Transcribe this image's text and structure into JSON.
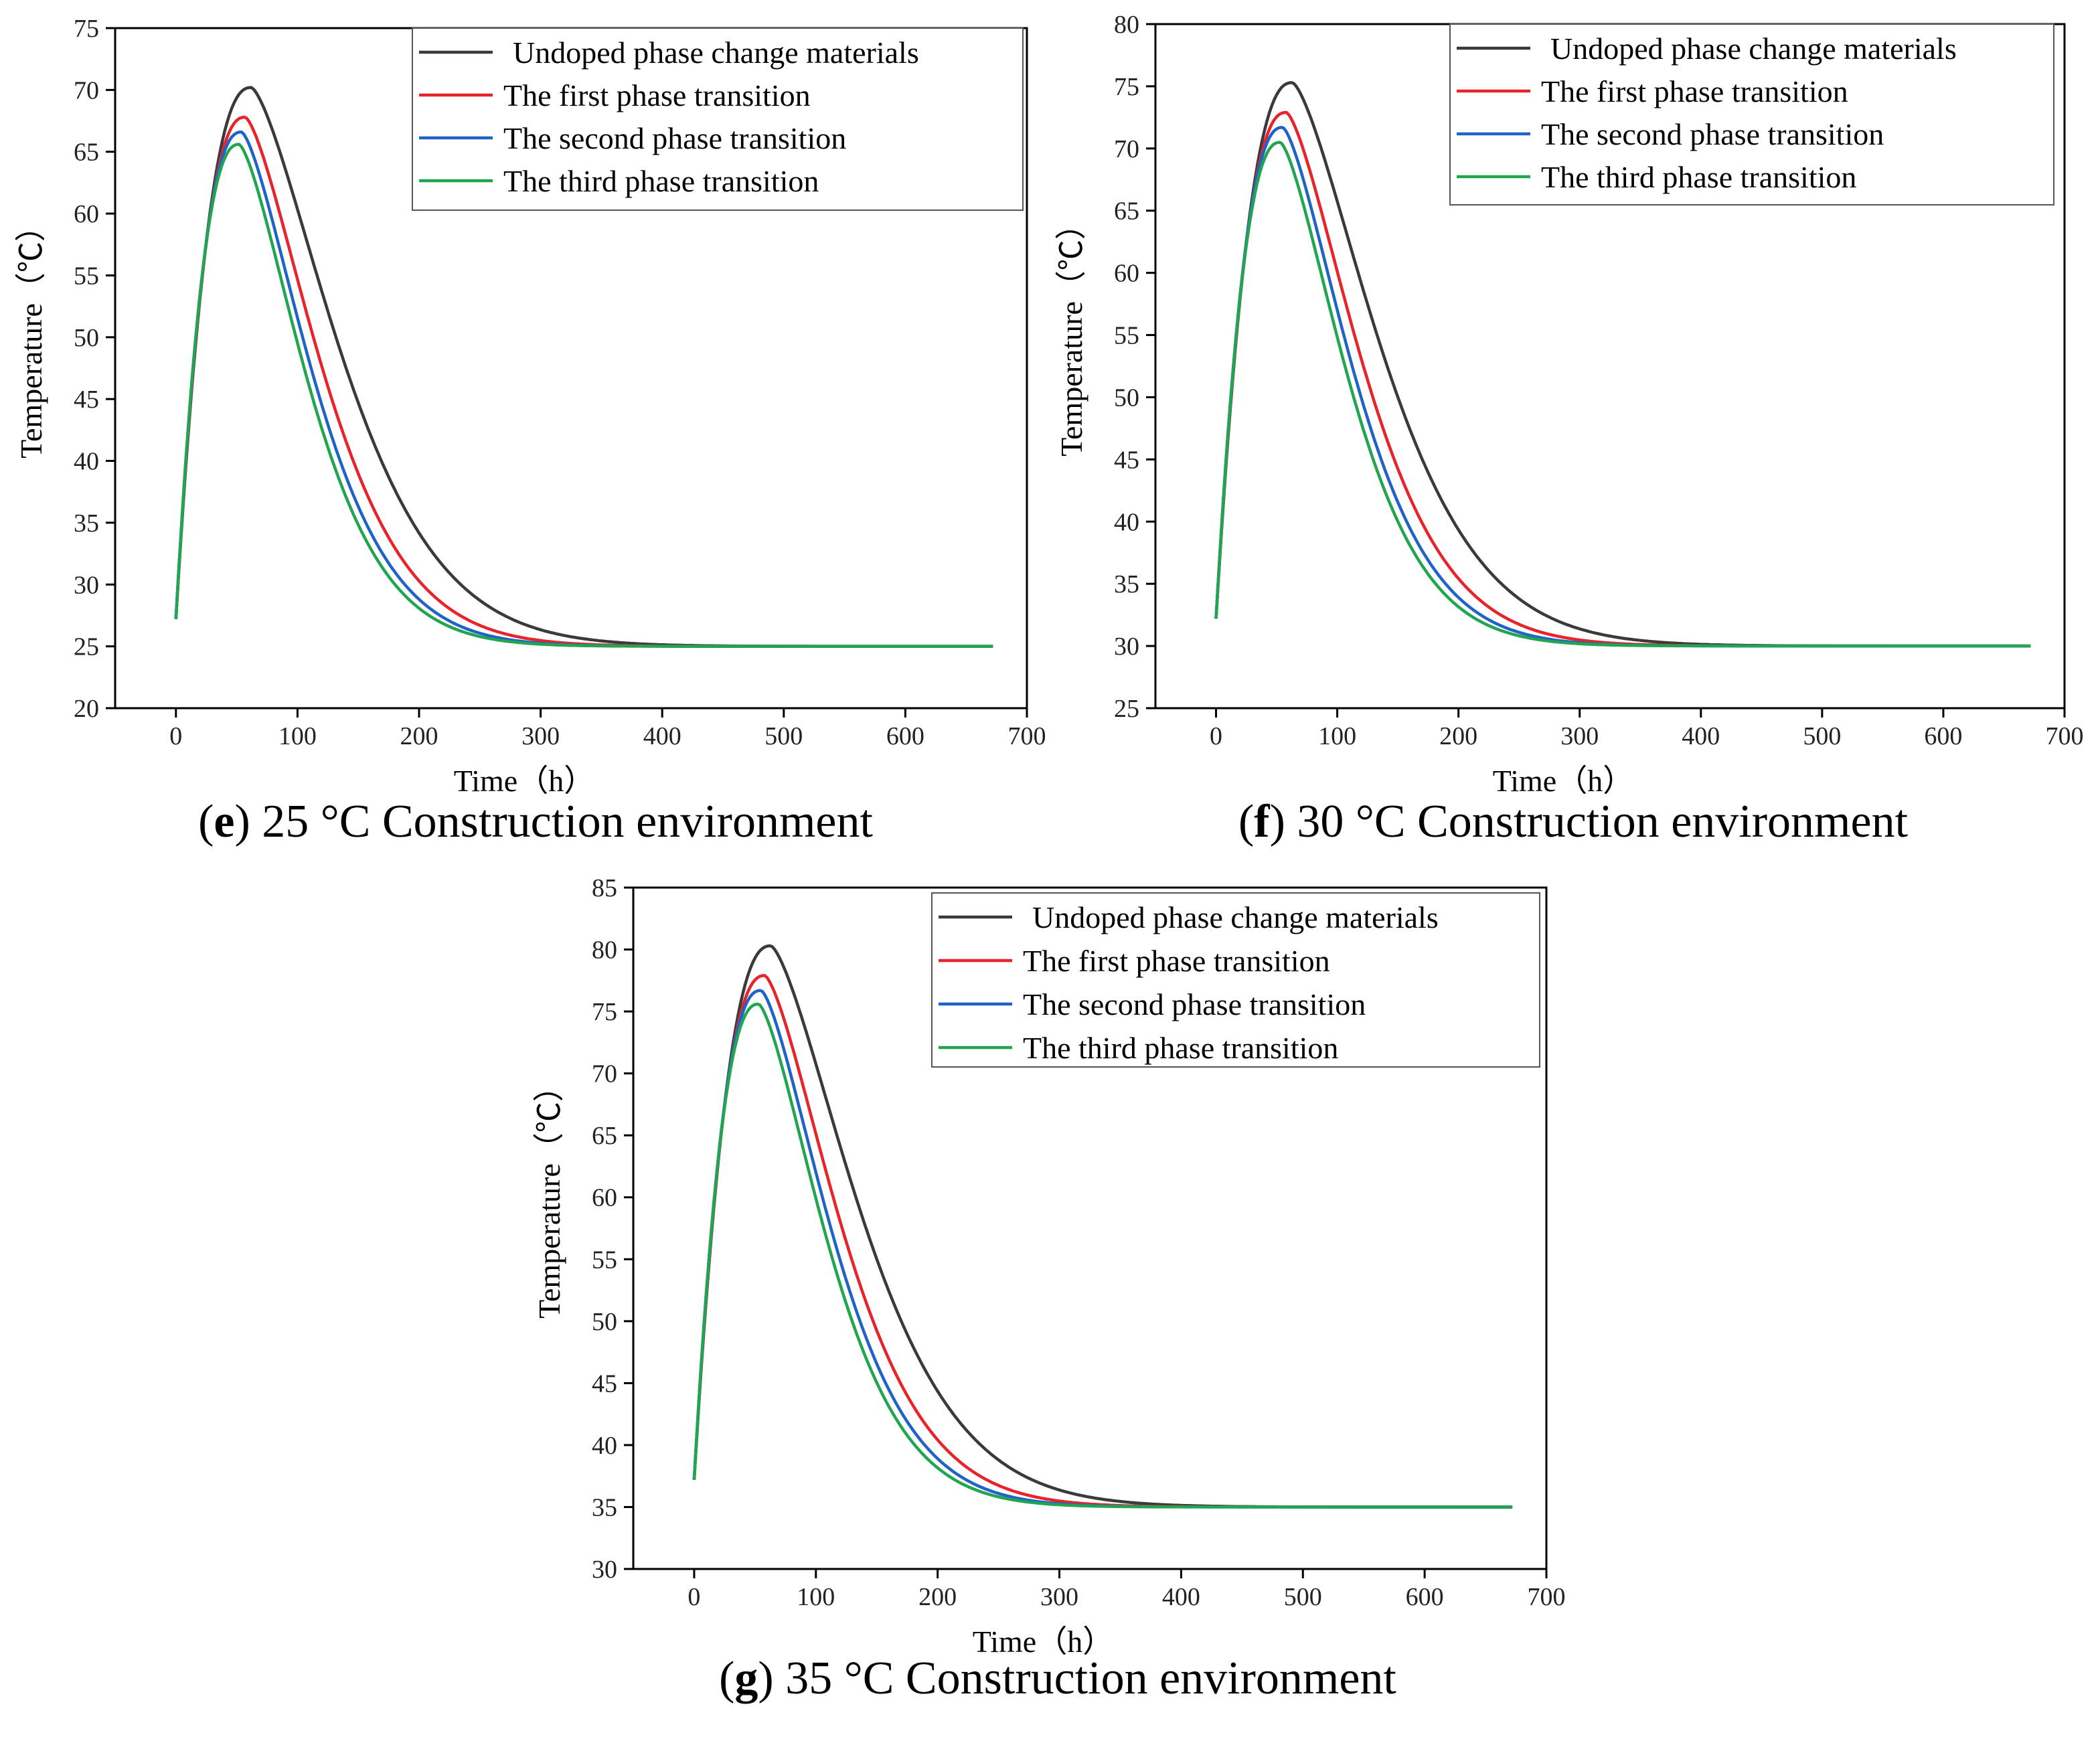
{
  "colors": {
    "undoped": "#3a3a3a",
    "first": "#e8232a",
    "second": "#1f63c9",
    "third": "#22a550",
    "axis": "#000000"
  },
  "legend_labels": [
    "Undoped phase change materials",
    "The first phase transition",
    "The second phase transition",
    "The third phase transition"
  ],
  "chart_data": [
    {
      "id": "e",
      "type": "line",
      "caption_letter": "e",
      "caption_text": " 25 °C Construction environment",
      "xlabel": "Time（h）",
      "ylabel": "Temperature（℃）",
      "xlim": [
        -50,
        700
      ],
      "ylim": [
        20,
        75
      ],
      "xticks": [
        0,
        100,
        200,
        300,
        400,
        500,
        600,
        700
      ],
      "yticks": [
        20,
        25,
        30,
        35,
        40,
        45,
        50,
        55,
        60,
        65,
        70,
        75
      ],
      "legend_position": "top-right",
      "ambient": 25,
      "start": 27.2,
      "x_end": 672,
      "series": [
        {
          "name": "Undoped phase change materials",
          "color_key": "undoped",
          "peak_x": 62,
          "peak_y": 70.2,
          "tau": 100
        },
        {
          "name": "The first phase transition",
          "color_key": "first",
          "peak_x": 57,
          "peak_y": 67.8,
          "tau": 86
        },
        {
          "name": "The second phase transition",
          "color_key": "second",
          "peak_x": 54,
          "peak_y": 66.6,
          "tau": 80
        },
        {
          "name": "The third phase transition",
          "color_key": "third",
          "peak_x": 52,
          "peak_y": 65.6,
          "tau": 77
        }
      ]
    },
    {
      "id": "f",
      "type": "line",
      "caption_letter": "f",
      "caption_text": " 30 °C Construction environment",
      "xlabel": "Time（h）",
      "ylabel": "Temperature（℃）",
      "xlim": [
        -50,
        700
      ],
      "ylim": [
        25,
        80
      ],
      "xticks": [
        0,
        100,
        200,
        300,
        400,
        500,
        600,
        700
      ],
      "yticks": [
        25,
        30,
        35,
        40,
        45,
        50,
        55,
        60,
        65,
        70,
        75,
        80
      ],
      "legend_position": "top-right",
      "ambient": 30,
      "start": 32.2,
      "x_end": 672,
      "series": [
        {
          "name": "Undoped phase change materials",
          "color_key": "undoped",
          "peak_x": 63,
          "peak_y": 75.3,
          "tau": 100
        },
        {
          "name": "The first phase transition",
          "color_key": "first",
          "peak_x": 58,
          "peak_y": 72.9,
          "tau": 86
        },
        {
          "name": "The second phase transition",
          "color_key": "second",
          "peak_x": 55,
          "peak_y": 71.7,
          "tau": 80
        },
        {
          "name": "The third phase transition",
          "color_key": "third",
          "peak_x": 53,
          "peak_y": 70.5,
          "tau": 77
        }
      ]
    },
    {
      "id": "g",
      "type": "line",
      "caption_letter": "g",
      "caption_text": " 35 °C Construction environment",
      "xlabel": "Time（h）",
      "ylabel": "Temperature（℃）",
      "xlim": [
        -50,
        700
      ],
      "ylim": [
        30,
        85
      ],
      "xticks": [
        0,
        100,
        200,
        300,
        400,
        500,
        600,
        700
      ],
      "yticks": [
        30,
        35,
        40,
        45,
        50,
        55,
        60,
        65,
        70,
        75,
        80,
        85
      ],
      "legend_position": "top-right",
      "ambient": 35,
      "start": 37.2,
      "x_end": 672,
      "series": [
        {
          "name": "Undoped phase change materials",
          "color_key": "undoped",
          "peak_x": 63,
          "peak_y": 80.3,
          "tau": 100
        },
        {
          "name": "The first phase transition",
          "color_key": "first",
          "peak_x": 58,
          "peak_y": 77.9,
          "tau": 86
        },
        {
          "name": "The second phase transition",
          "color_key": "second",
          "peak_x": 55,
          "peak_y": 76.7,
          "tau": 80
        },
        {
          "name": "The third phase transition",
          "color_key": "third",
          "peak_x": 53,
          "peak_y": 75.6,
          "tau": 77
        }
      ]
    }
  ]
}
